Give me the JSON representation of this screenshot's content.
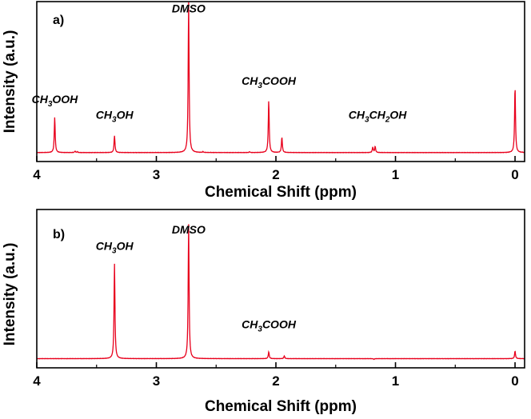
{
  "chart_data": [
    {
      "type": "line",
      "panel_label": "a)",
      "xlabel": "Chemical Shift (ppm)",
      "ylabel": "Intensity (a.u.)",
      "xlim": [
        4.0,
        -0.08
      ],
      "ylim": [
        0,
        1.0
      ],
      "x_reversed": true,
      "x_ticks": [
        4,
        3,
        2,
        1,
        0
      ],
      "line_color": "#e8001c",
      "grid": false,
      "baseline": 0.02,
      "peaks": [
        {
          "x": 3.85,
          "y": 0.25
        },
        {
          "x": 3.68,
          "y": 0.03
        },
        {
          "x": 3.66,
          "y": 0.025
        },
        {
          "x": 3.35,
          "y": 0.13
        },
        {
          "x": 3.14,
          "y": 0.02
        },
        {
          "x": 2.85,
          "y": 0.02
        },
        {
          "x": 2.73,
          "y": 1.0
        },
        {
          "x": 2.61,
          "y": 0.025
        },
        {
          "x": 2.22,
          "y": 0.025
        },
        {
          "x": 2.06,
          "y": 0.36
        },
        {
          "x": 1.95,
          "y": 0.12
        },
        {
          "x": 1.19,
          "y": 0.055
        },
        {
          "x": 1.17,
          "y": 0.06
        },
        {
          "x": 0.0,
          "y": 0.45
        }
      ],
      "annotations": [
        {
          "base": "CH",
          "sub": "3",
          "rest": "OOH",
          "x": 3.85,
          "y": 0.34
        },
        {
          "base": "CH",
          "sub": "3",
          "rest": "OH",
          "x": 3.35,
          "y": 0.24
        },
        {
          "base": "DMSO",
          "sub": "",
          "rest": "",
          "x": 2.73,
          "y": 0.93
        },
        {
          "base": "CH",
          "sub": "3",
          "rest": "COOH",
          "x": 2.06,
          "y": 0.46
        },
        {
          "base": "CH",
          "sub": "3",
          "rest": "CH",
          "sub2": "2",
          "rest2": "OH",
          "x": 1.15,
          "y": 0.24
        }
      ]
    },
    {
      "type": "line",
      "panel_label": "b)",
      "xlabel": "Chemical Shift (ppm)",
      "ylabel": "Intensity (a.u.)",
      "xlim": [
        4.0,
        -0.08
      ],
      "ylim": [
        0,
        1.0
      ],
      "x_reversed": true,
      "x_ticks": [
        4,
        3,
        2,
        1,
        0
      ],
      "line_color": "#e8001c",
      "grid": false,
      "baseline": 0.02,
      "peaks": [
        {
          "x": 3.35,
          "y": 0.71
        },
        {
          "x": 2.73,
          "y": 1.0
        },
        {
          "x": 2.22,
          "y": 0.02
        },
        {
          "x": 2.06,
          "y": 0.07
        },
        {
          "x": 1.93,
          "y": 0.04
        },
        {
          "x": 1.18,
          "y": 0.015
        },
        {
          "x": 0.0,
          "y": 0.075
        }
      ],
      "annotations": [
        {
          "base": "CH",
          "sub": "3",
          "rest": "OH",
          "x": 3.35,
          "y": 0.81
        },
        {
          "base": "DMSO",
          "sub": "",
          "rest": "",
          "x": 2.73,
          "y": 0.93
        },
        {
          "base": "CH",
          "sub": "3",
          "rest": "COOH",
          "x": 2.06,
          "y": 0.24
        }
      ]
    }
  ]
}
